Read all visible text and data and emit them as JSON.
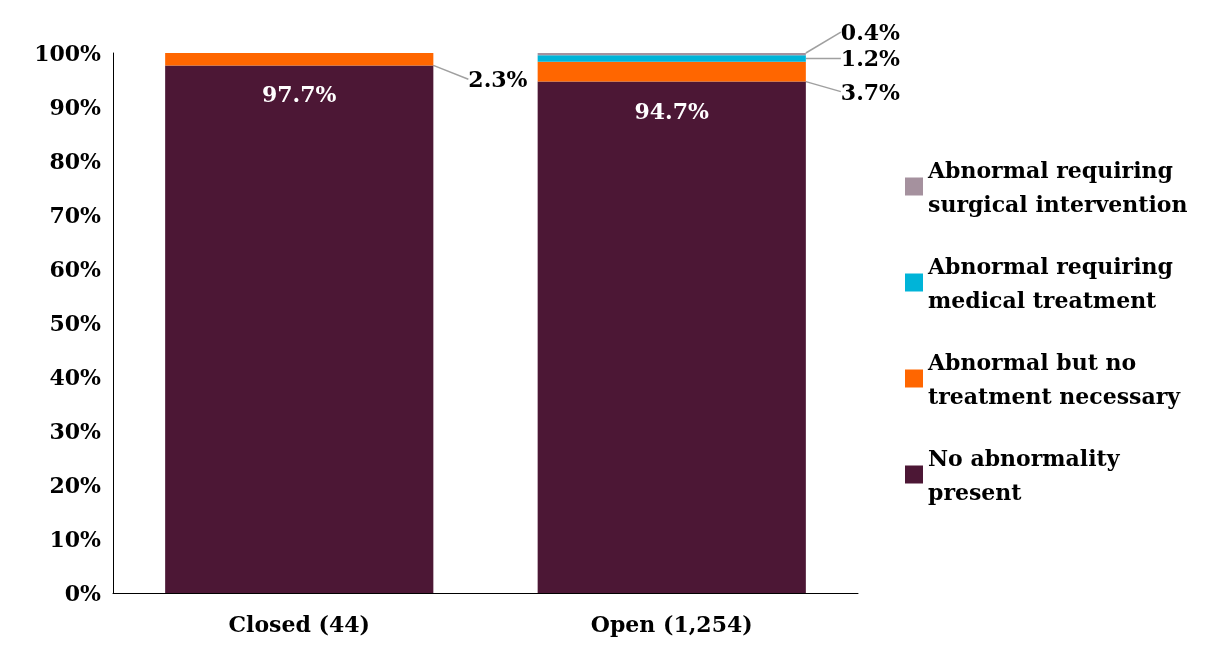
{
  "chart_data": {
    "type": "bar",
    "stacked": true,
    "categories": [
      "Closed (44)",
      "Open (1,254)"
    ],
    "series": [
      {
        "name": "No abnormality present",
        "color": "#4c1735",
        "values": [
          97.7,
          94.7
        ],
        "value_labels": [
          "97.7%",
          "94.7%"
        ]
      },
      {
        "name": "Abnormal but no treatment necessary",
        "color": "#ff6600",
        "values": [
          2.3,
          3.7
        ],
        "value_labels": [
          "2.3%",
          "3.7%"
        ]
      },
      {
        "name": "Abnormal requiring medical treatment",
        "color": "#00b4d8",
        "values": [
          null,
          1.2
        ],
        "value_labels": [
          null,
          "1.2%"
        ]
      },
      {
        "name": "Abnormal requiring surgical intervention",
        "color": "#a5919e",
        "values": [
          null,
          0.4
        ],
        "value_labels": [
          null,
          "0.4%"
        ]
      }
    ],
    "ylim": [
      0,
      100
    ],
    "yticks": [
      {
        "value": 0,
        "label": "0%"
      },
      {
        "value": 10,
        "label": "10%"
      },
      {
        "value": 20,
        "label": "20%"
      },
      {
        "value": 30,
        "label": "30%"
      },
      {
        "value": 40,
        "label": "40%"
      },
      {
        "value": 50,
        "label": "50%"
      },
      {
        "value": 60,
        "label": "60%"
      },
      {
        "value": 70,
        "label": "70%"
      },
      {
        "value": 80,
        "label": "80%"
      },
      {
        "value": 90,
        "label": "90%"
      },
      {
        "value": 100,
        "label": "100%"
      }
    ],
    "grid": false,
    "legend": "right"
  }
}
